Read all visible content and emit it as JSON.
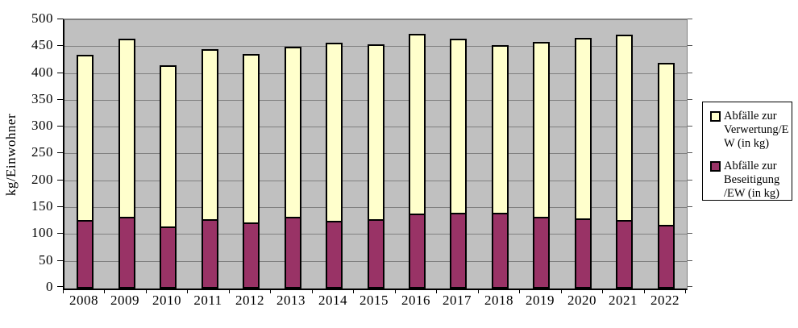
{
  "chart_data": {
    "type": "bar",
    "subtype": "stacked-column",
    "title": "",
    "xlabel": "",
    "ylabel": "kg/Einwohner",
    "ylim": [
      0,
      500
    ],
    "ytick_step": 50,
    "yticks": [
      0,
      50,
      100,
      150,
      200,
      250,
      300,
      350,
      400,
      450,
      500
    ],
    "grid": true,
    "legend_position": "right",
    "plot_background": "#c0c0c0",
    "gridline_color": "#808080",
    "categories": [
      "2008",
      "2009",
      "2010",
      "2011",
      "2012",
      "2013",
      "2014",
      "2015",
      "2016",
      "2017",
      "2018",
      "2019",
      "2020",
      "2021",
      "2022"
    ],
    "series": [
      {
        "name": "Abfälle zur Verwertung/EW (in kg)",
        "color": "#ffffcc",
        "stack_order": "top",
        "values": [
          308,
          332,
          300,
          317,
          314,
          317,
          332,
          326,
          335,
          324,
          313,
          326,
          337,
          345,
          302
        ]
      },
      {
        "name": "Abfälle zur Beseitigung/EW (in kg)",
        "color": "#993366",
        "stack_order": "bottom",
        "values": [
          127,
          133,
          115,
          129,
          123,
          133,
          126,
          129,
          140,
          141,
          141,
          134,
          131,
          127,
          119
        ]
      }
    ],
    "stacked_totals": [
      435,
      465,
      415,
      446,
      437,
      450,
      458,
      455,
      475,
      465,
      454,
      460,
      468,
      472,
      421
    ]
  },
  "legend": {
    "items": [
      {
        "lines": "Abfälle zur\nVerwertung/E\nW (in kg)",
        "color": "#ffffcc"
      },
      {
        "lines": "Abfälle zur\nBeseitigung\n/EW (in kg)",
        "color": "#993366"
      }
    ]
  }
}
